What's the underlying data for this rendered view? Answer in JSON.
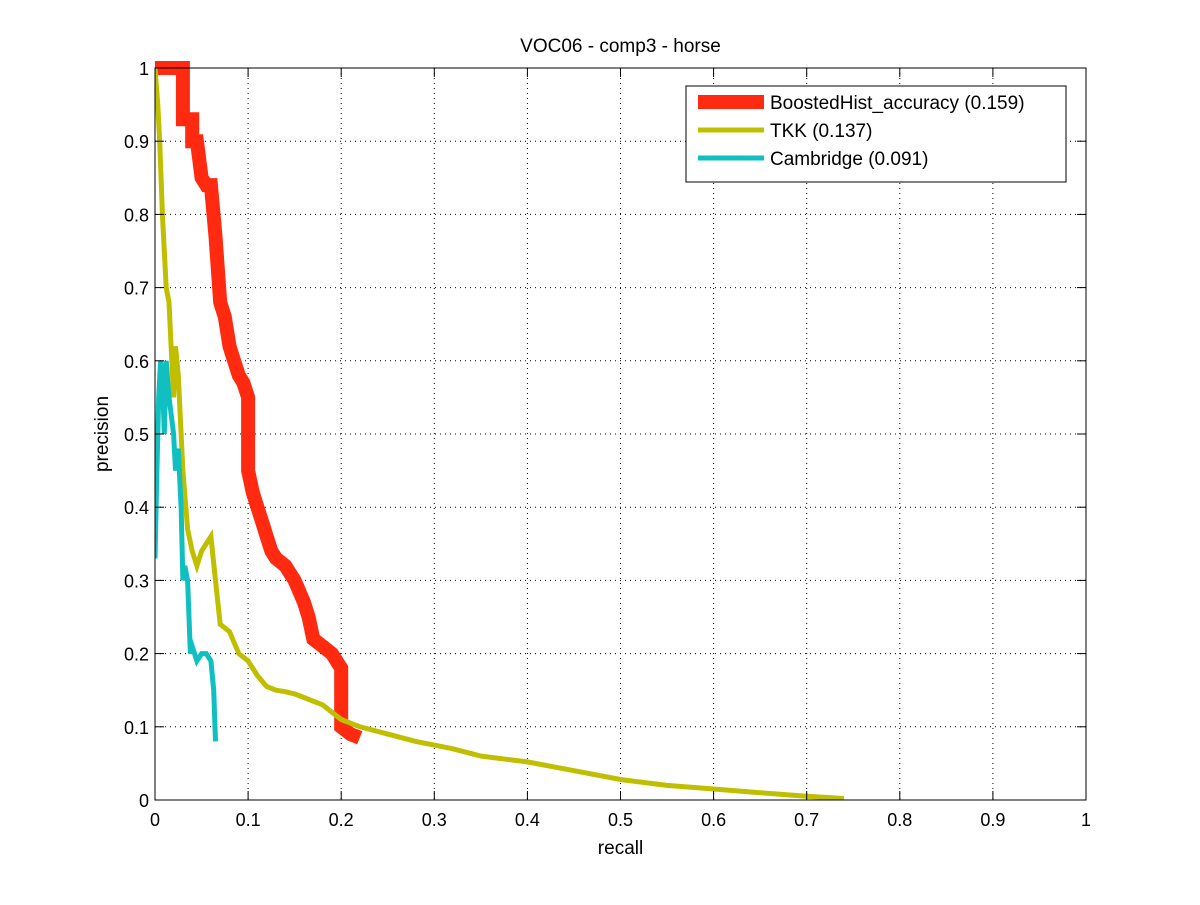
{
  "chart_data": {
    "type": "line",
    "title": "VOC06 - comp3 - horse",
    "xlabel": "recall",
    "ylabel": "precision",
    "xlim": [
      0,
      1
    ],
    "ylim": [
      0,
      1
    ],
    "xticks": [
      0,
      0.1,
      0.2,
      0.3,
      0.4,
      0.5,
      0.6,
      0.7,
      0.8,
      0.9,
      1
    ],
    "yticks": [
      0,
      0.1,
      0.2,
      0.3,
      0.4,
      0.5,
      0.6,
      0.7,
      0.8,
      0.9,
      1
    ],
    "xtick_labels": [
      "0",
      "0.1",
      "0.2",
      "0.3",
      "0.4",
      "0.5",
      "0.6",
      "0.7",
      "0.8",
      "0.9",
      "1"
    ],
    "ytick_labels": [
      "0",
      "0.1",
      "0.2",
      "0.3",
      "0.4",
      "0.5",
      "0.6",
      "0.7",
      "0.8",
      "0.9",
      "1"
    ],
    "grid": true,
    "legend_position": "top-right",
    "series": [
      {
        "name": "BoostedHist_accuracy (0.159)",
        "color": "#ff2a10",
        "x": [
          0.0,
          0.003,
          0.01,
          0.02,
          0.03,
          0.03,
          0.04,
          0.04,
          0.045,
          0.05,
          0.055,
          0.06,
          0.065,
          0.07,
          0.075,
          0.08,
          0.085,
          0.09,
          0.095,
          0.1,
          0.1,
          0.105,
          0.11,
          0.115,
          0.12,
          0.125,
          0.13,
          0.14,
          0.15,
          0.16,
          0.165,
          0.17,
          0.18,
          0.19,
          0.2,
          0.2,
          0.205,
          0.21,
          0.22
        ],
        "y": [
          1.0,
          1.0,
          1.0,
          1.0,
          1.0,
          0.93,
          0.93,
          0.9,
          0.9,
          0.85,
          0.84,
          0.84,
          0.77,
          0.68,
          0.66,
          0.62,
          0.6,
          0.58,
          0.57,
          0.55,
          0.45,
          0.42,
          0.4,
          0.38,
          0.36,
          0.34,
          0.33,
          0.32,
          0.3,
          0.27,
          0.25,
          0.22,
          0.21,
          0.2,
          0.18,
          0.1,
          0.095,
          0.09,
          0.085
        ],
        "line_width": 14
      },
      {
        "name": "TKK (0.137)",
        "color": "#bfbf00",
        "x": [
          0.0,
          0.003,
          0.005,
          0.008,
          0.01,
          0.012,
          0.015,
          0.018,
          0.02,
          0.022,
          0.025,
          0.028,
          0.03,
          0.035,
          0.04,
          0.045,
          0.05,
          0.055,
          0.06,
          0.065,
          0.07,
          0.08,
          0.09,
          0.1,
          0.11,
          0.12,
          0.13,
          0.14,
          0.15,
          0.16,
          0.17,
          0.18,
          0.2,
          0.22,
          0.25,
          0.28,
          0.3,
          0.32,
          0.35,
          0.4,
          0.45,
          0.5,
          0.55,
          0.6,
          0.65,
          0.7,
          0.74
        ],
        "y": [
          1.0,
          0.95,
          0.9,
          0.8,
          0.75,
          0.7,
          0.68,
          0.6,
          0.55,
          0.62,
          0.58,
          0.5,
          0.45,
          0.37,
          0.34,
          0.32,
          0.34,
          0.35,
          0.36,
          0.3,
          0.24,
          0.23,
          0.2,
          0.19,
          0.17,
          0.155,
          0.15,
          0.148,
          0.145,
          0.14,
          0.135,
          0.13,
          0.11,
          0.1,
          0.09,
          0.08,
          0.075,
          0.07,
          0.06,
          0.052,
          0.04,
          0.028,
          0.02,
          0.015,
          0.01,
          0.005,
          0.002
        ],
        "line_width": 5
      },
      {
        "name": "Cambridge (0.091)",
        "color": "#10bfbf",
        "x": [
          0.0,
          0.002,
          0.004,
          0.006,
          0.008,
          0.01,
          0.012,
          0.015,
          0.018,
          0.02,
          0.022,
          0.025,
          0.028,
          0.03,
          0.032,
          0.035,
          0.038,
          0.04,
          0.045,
          0.05,
          0.055,
          0.06,
          0.063,
          0.065
        ],
        "y": [
          0.33,
          0.45,
          0.55,
          0.6,
          0.58,
          0.5,
          0.6,
          0.55,
          0.52,
          0.5,
          0.45,
          0.48,
          0.4,
          0.3,
          0.32,
          0.3,
          0.2,
          0.21,
          0.19,
          0.2,
          0.2,
          0.19,
          0.15,
          0.08
        ],
        "line_width": 5
      }
    ]
  }
}
